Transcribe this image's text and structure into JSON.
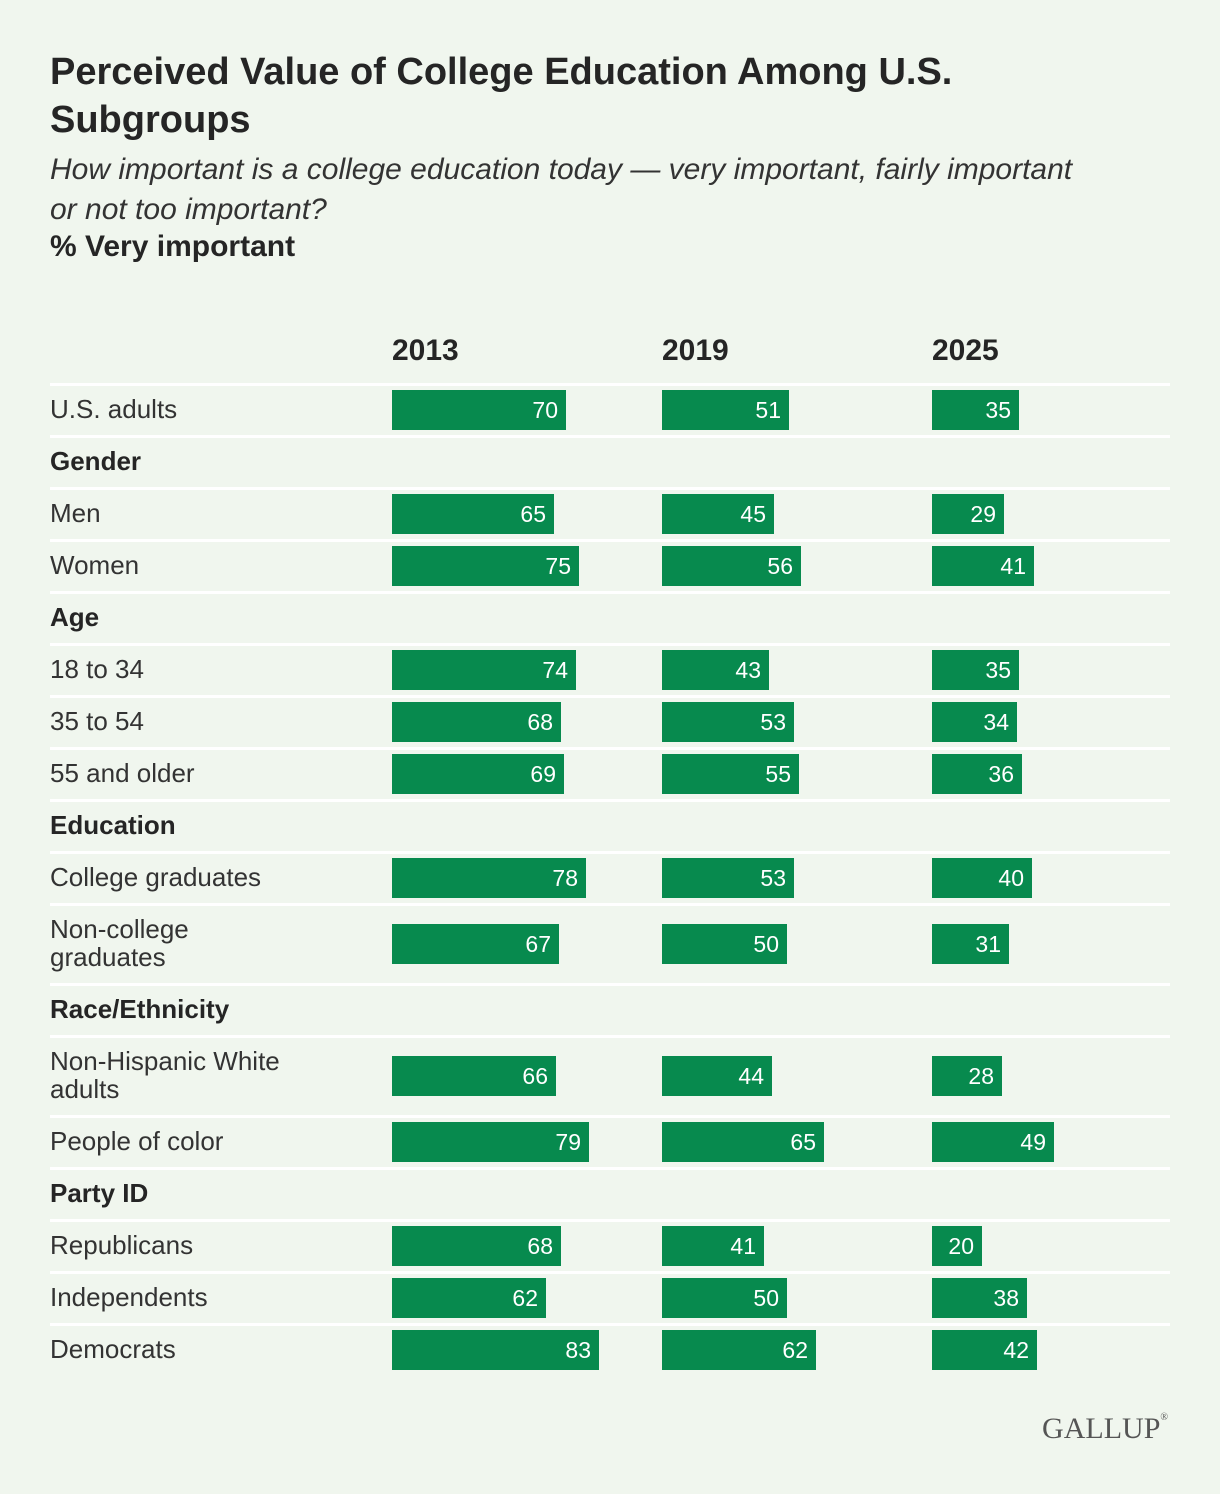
{
  "chart_data": {
    "type": "bar",
    "title": "Perceived Value of College Education Among U.S. Subgroups",
    "subtitle": "How important is a college education today — very important, fairly important or not too important?",
    "measure": "% Very important",
    "xlim": [
      0,
      100
    ],
    "years": [
      "2013",
      "2019",
      "2025"
    ],
    "rows": [
      {
        "label": "U.S. adults",
        "group": false,
        "values": [
          70,
          51,
          35
        ]
      },
      {
        "label": "Gender",
        "group": true
      },
      {
        "label": "Men",
        "group": false,
        "values": [
          65,
          45,
          29
        ]
      },
      {
        "label": "Women",
        "group": false,
        "values": [
          75,
          56,
          41
        ]
      },
      {
        "label": "Age",
        "group": true
      },
      {
        "label": "18 to 34",
        "group": false,
        "values": [
          74,
          43,
          35
        ]
      },
      {
        "label": "35 to 54",
        "group": false,
        "values": [
          68,
          53,
          34
        ]
      },
      {
        "label": "55 and older",
        "group": false,
        "values": [
          69,
          55,
          36
        ]
      },
      {
        "label": "Education",
        "group": true
      },
      {
        "label": "College graduates",
        "group": false,
        "values": [
          78,
          53,
          40
        ]
      },
      {
        "label": "Non-college graduates",
        "group": false,
        "values": [
          67,
          50,
          31
        ]
      },
      {
        "label": "Race/Ethnicity",
        "group": true
      },
      {
        "label": "Non-Hispanic White adults",
        "group": false,
        "values": [
          66,
          44,
          28
        ]
      },
      {
        "label": "People of color",
        "group": false,
        "values": [
          79,
          65,
          49
        ]
      },
      {
        "label": "Party ID",
        "group": true
      },
      {
        "label": "Republicans",
        "group": false,
        "values": [
          68,
          41,
          20
        ]
      },
      {
        "label": "Independents",
        "group": false,
        "values": [
          62,
          50,
          38
        ]
      },
      {
        "label": "Democrats",
        "group": false,
        "values": [
          83,
          62,
          42
        ]
      }
    ]
  },
  "source_logo": "GALLUP",
  "colors": {
    "bar": "#078a4e",
    "background": "#f0f6ee"
  }
}
